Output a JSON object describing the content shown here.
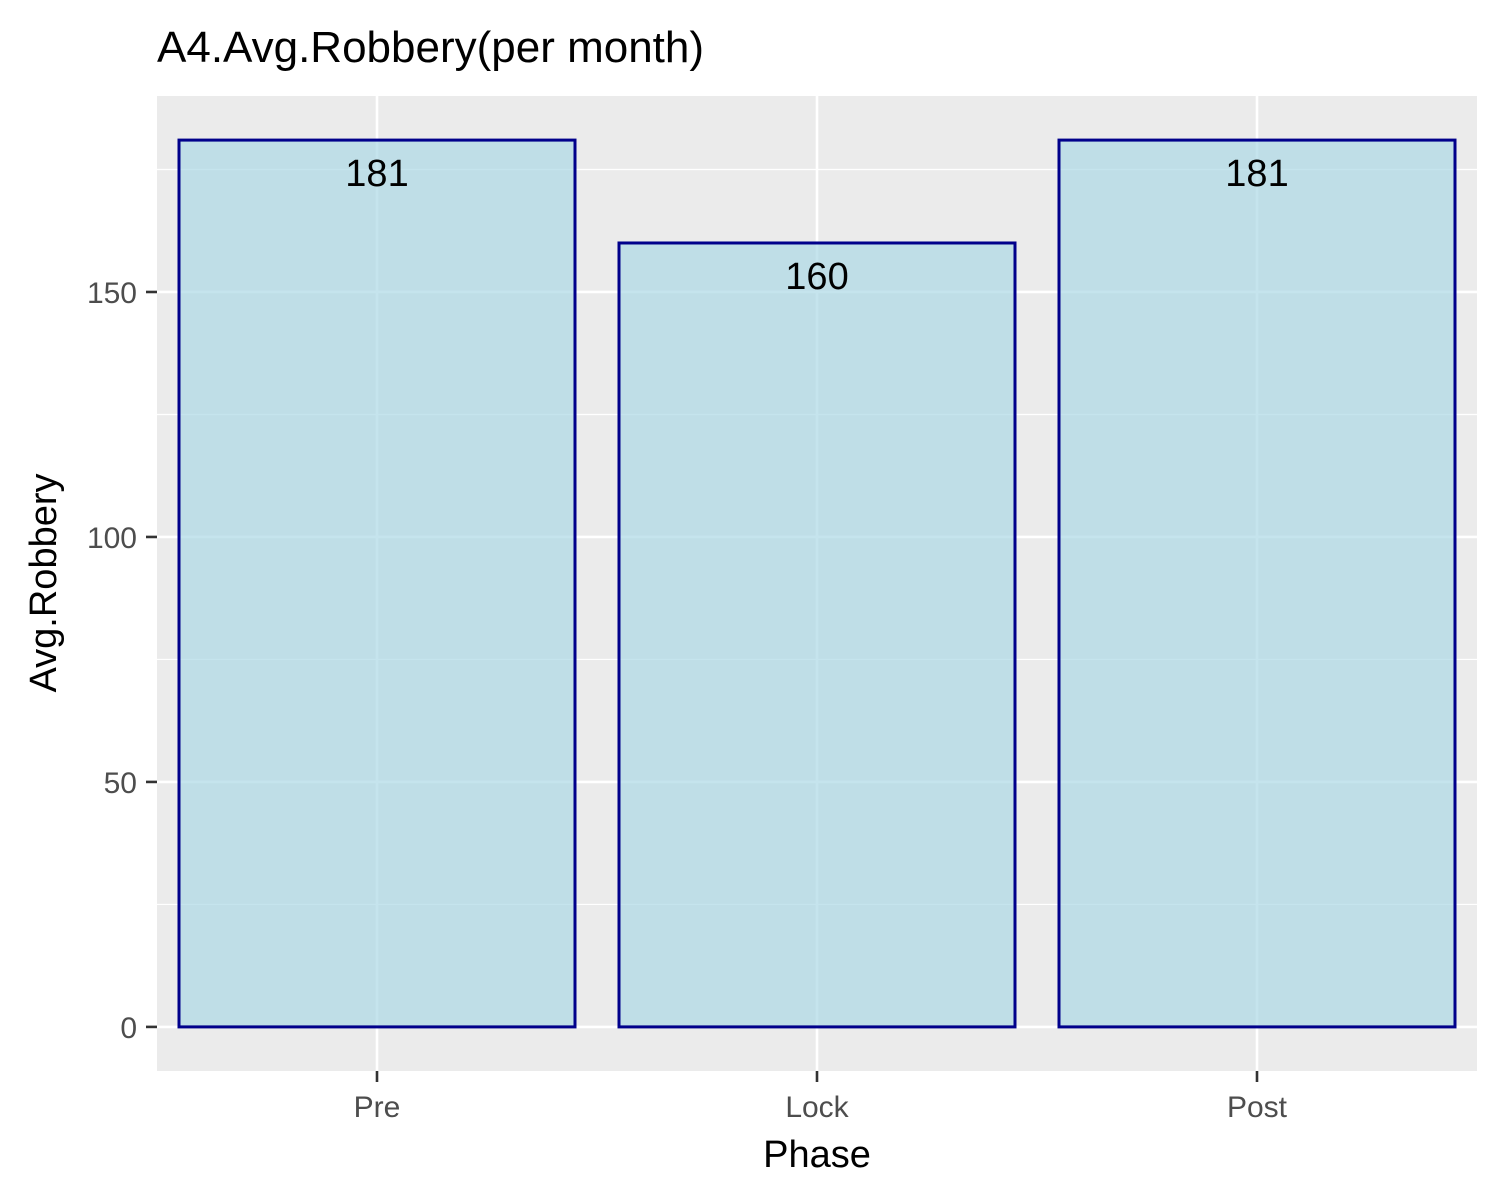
{
  "chart_data": {
    "type": "bar",
    "title": "A4.Avg.Robbery(per month)",
    "xlabel": "Phase",
    "ylabel": "Avg.Robbery",
    "categories": [
      "Pre",
      "Lock",
      "Post"
    ],
    "values": [
      181,
      160,
      181
    ],
    "data_labels": [
      "181",
      "160",
      "181"
    ],
    "yticks": [
      0,
      50,
      100,
      150
    ],
    "ytick_labels": [
      "0",
      "50",
      "100",
      "150"
    ],
    "ylim": [
      -9,
      190
    ],
    "grid": true,
    "legend": "none",
    "colors": {
      "bar_fill": "#add8e6",
      "bar_stroke": "#00008b",
      "panel_background": "#ebebeb",
      "grid_major": "#ffffff",
      "tick_text": "#4d4d4d"
    }
  }
}
